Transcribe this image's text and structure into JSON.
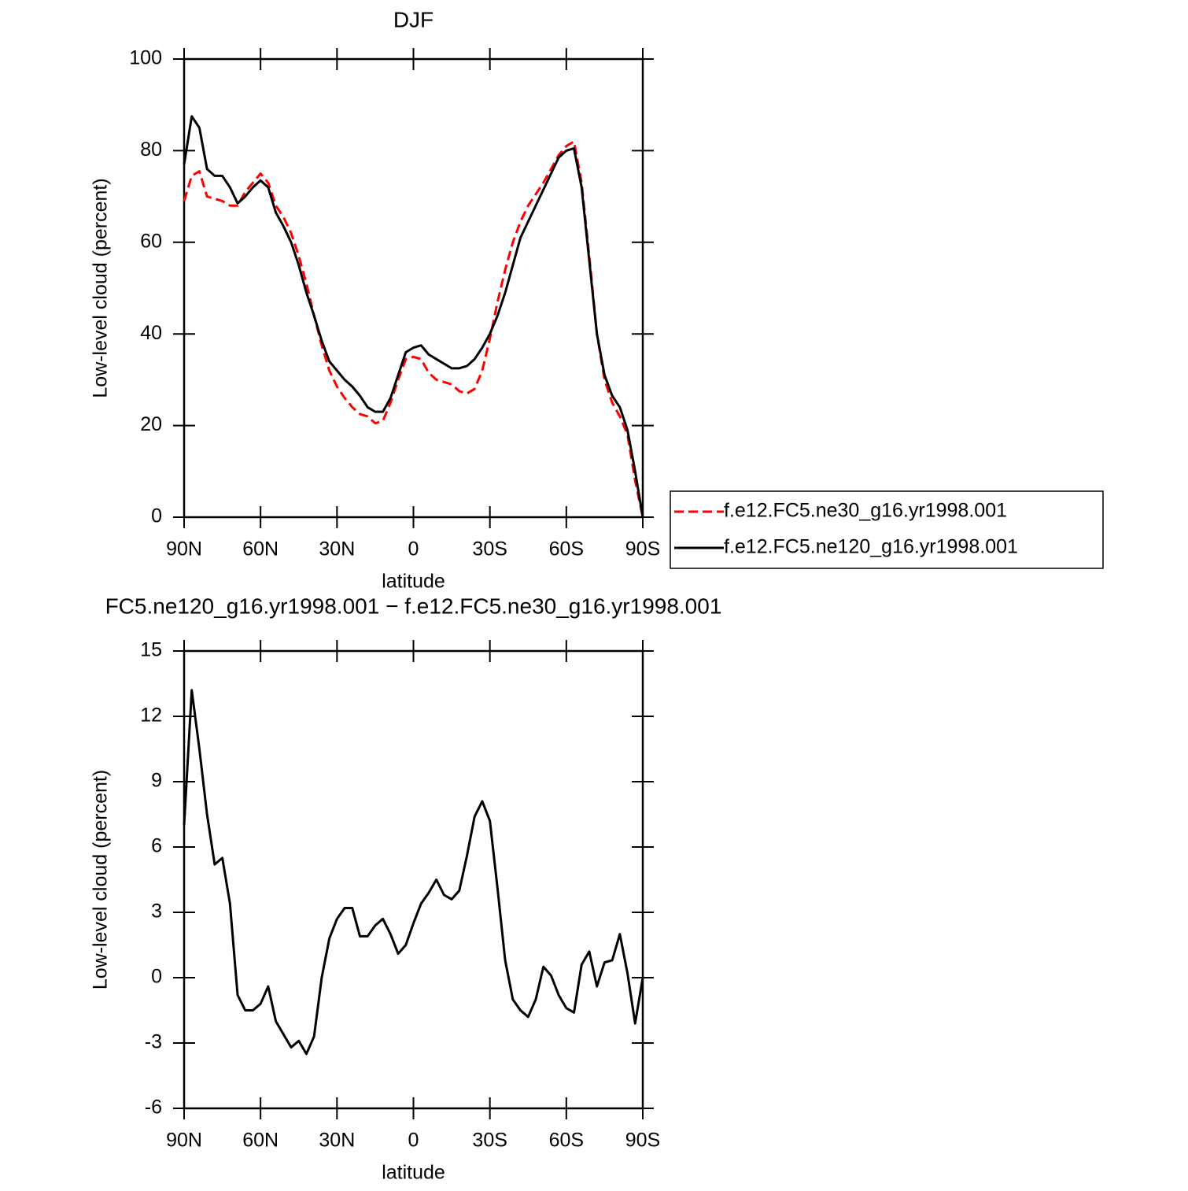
{
  "chart_data": [
    {
      "type": "line",
      "title": "DJF",
      "x_label": "latitude",
      "y_label": "Low-level cloud (percent)",
      "x": [
        90,
        87,
        84,
        81,
        78,
        75,
        72,
        69,
        66,
        63,
        60,
        57,
        54,
        51,
        48,
        45,
        42,
        39,
        36,
        33,
        30,
        27,
        24,
        21,
        18,
        15,
        12,
        9,
        6,
        3,
        0,
        -3,
        -6,
        -9,
        -12,
        -15,
        -18,
        -21,
        -24,
        -27,
        -30,
        -33,
        -36,
        -39,
        -42,
        -45,
        -48,
        -51,
        -54,
        -57,
        -60,
        -63,
        -66,
        -69,
        -72,
        -75,
        -78,
        -81,
        -84,
        -87,
        -90
      ],
      "xlim": [
        90,
        -90
      ],
      "xticks": [
        {
          "value": 90,
          "label": "90N"
        },
        {
          "value": 60,
          "label": "60N"
        },
        {
          "value": 30,
          "label": "30N"
        },
        0,
        {
          "value": -30,
          "label": "30S"
        },
        {
          "value": -60,
          "label": "60S"
        },
        {
          "value": -90,
          "label": "90S"
        }
      ],
      "ylim": [
        0,
        100
      ],
      "yticks": [
        0,
        20,
        40,
        60,
        80,
        100
      ],
      "legend": "outside-right",
      "series": [
        {
          "name": "f.e12.FC5.ne30_g16.yr1998.001",
          "color": "#ff0000",
          "dash": true,
          "values": [
            69,
            74.5,
            75.5,
            70,
            69.5,
            69,
            68,
            68,
            71,
            73,
            75,
            73,
            68,
            65.5,
            62,
            57,
            51,
            44,
            37.5,
            32,
            28.5,
            26,
            24,
            22.5,
            22,
            20.5,
            21,
            25,
            30,
            34.5,
            35,
            34.5,
            31.5,
            30,
            29.5,
            29,
            27.5,
            27,
            28,
            32,
            39,
            47,
            54,
            60,
            64.5,
            68,
            70.5,
            73,
            76,
            79,
            81,
            82,
            73,
            57,
            40,
            30,
            25,
            22,
            18,
            8,
            0
          ]
        },
        {
          "name": "f.e12.FC5.ne120_g16.yr1998.001",
          "color": "#000000",
          "dash": false,
          "values": [
            77,
            87.5,
            85,
            76,
            74.5,
            74.5,
            72,
            68.5,
            70,
            72,
            73.5,
            72,
            66.5,
            63.5,
            60,
            55,
            49,
            44,
            38.5,
            34,
            32,
            30,
            28.5,
            26.5,
            24,
            23,
            23,
            26,
            31,
            36,
            37,
            37.5,
            35.5,
            34.5,
            33.5,
            32.5,
            32.5,
            33,
            34.5,
            37,
            40,
            44,
            49,
            55,
            61,
            64.5,
            68,
            71.5,
            75,
            78.5,
            80,
            80.5,
            72,
            56,
            40,
            31,
            26.5,
            24,
            19,
            10,
            0
          ]
        }
      ]
    },
    {
      "type": "line",
      "title": "FC5.ne120_g16.yr1998.001 − f.e12.FC5.ne30_g16.yr1998.001",
      "x_label": "latitude",
      "y_label": "Low-level cloud (percent)",
      "x": [
        90,
        87,
        84,
        81,
        78,
        75,
        72,
        69,
        66,
        63,
        60,
        57,
        54,
        51,
        48,
        45,
        42,
        39,
        36,
        33,
        30,
        27,
        24,
        21,
        18,
        15,
        12,
        9,
        6,
        3,
        0,
        -3,
        -6,
        -9,
        -12,
        -15,
        -18,
        -21,
        -24,
        -27,
        -30,
        -33,
        -36,
        -39,
        -42,
        -45,
        -48,
        -51,
        -54,
        -57,
        -60,
        -63,
        -66,
        -69,
        -72,
        -75,
        -78,
        -81,
        -84,
        -87,
        -90
      ],
      "xlim": [
        90,
        -90
      ],
      "xticks": [
        {
          "value": 90,
          "label": "90N"
        },
        {
          "value": 60,
          "label": "60N"
        },
        {
          "value": 30,
          "label": "30N"
        },
        0,
        {
          "value": -30,
          "label": "30S"
        },
        {
          "value": -60,
          "label": "60S"
        },
        {
          "value": -90,
          "label": "90S"
        }
      ],
      "ylim": [
        -6,
        15
      ],
      "yticks": [
        -6,
        -3,
        0,
        3,
        6,
        9,
        12,
        15
      ],
      "series": [
        {
          "color": "#000000",
          "dash": false,
          "values": [
            7,
            13.2,
            10.5,
            7.5,
            5.2,
            5.5,
            3.4,
            -0.8,
            -1.5,
            -1.5,
            -1.2,
            -0.4,
            -2,
            -2.6,
            -3.2,
            -2.9,
            -3.5,
            -2.7,
            0,
            1.8,
            2.7,
            3.2,
            3.2,
            1.9,
            1.9,
            2.4,
            2.7,
            2,
            1.1,
            1.5,
            2.5,
            3.4,
            3.9,
            4.5,
            3.8,
            3.6,
            4,
            5.6,
            7.4,
            8.1,
            7.2,
            4.1,
            0.8,
            -1,
            -1.5,
            -1.8,
            -1,
            0.5,
            0.1,
            -0.8,
            -1.4,
            -1.6,
            0.6,
            1.2,
            -0.4,
            0.7,
            0.8,
            2,
            0.2,
            -2.1,
            0
          ]
        }
      ]
    }
  ]
}
